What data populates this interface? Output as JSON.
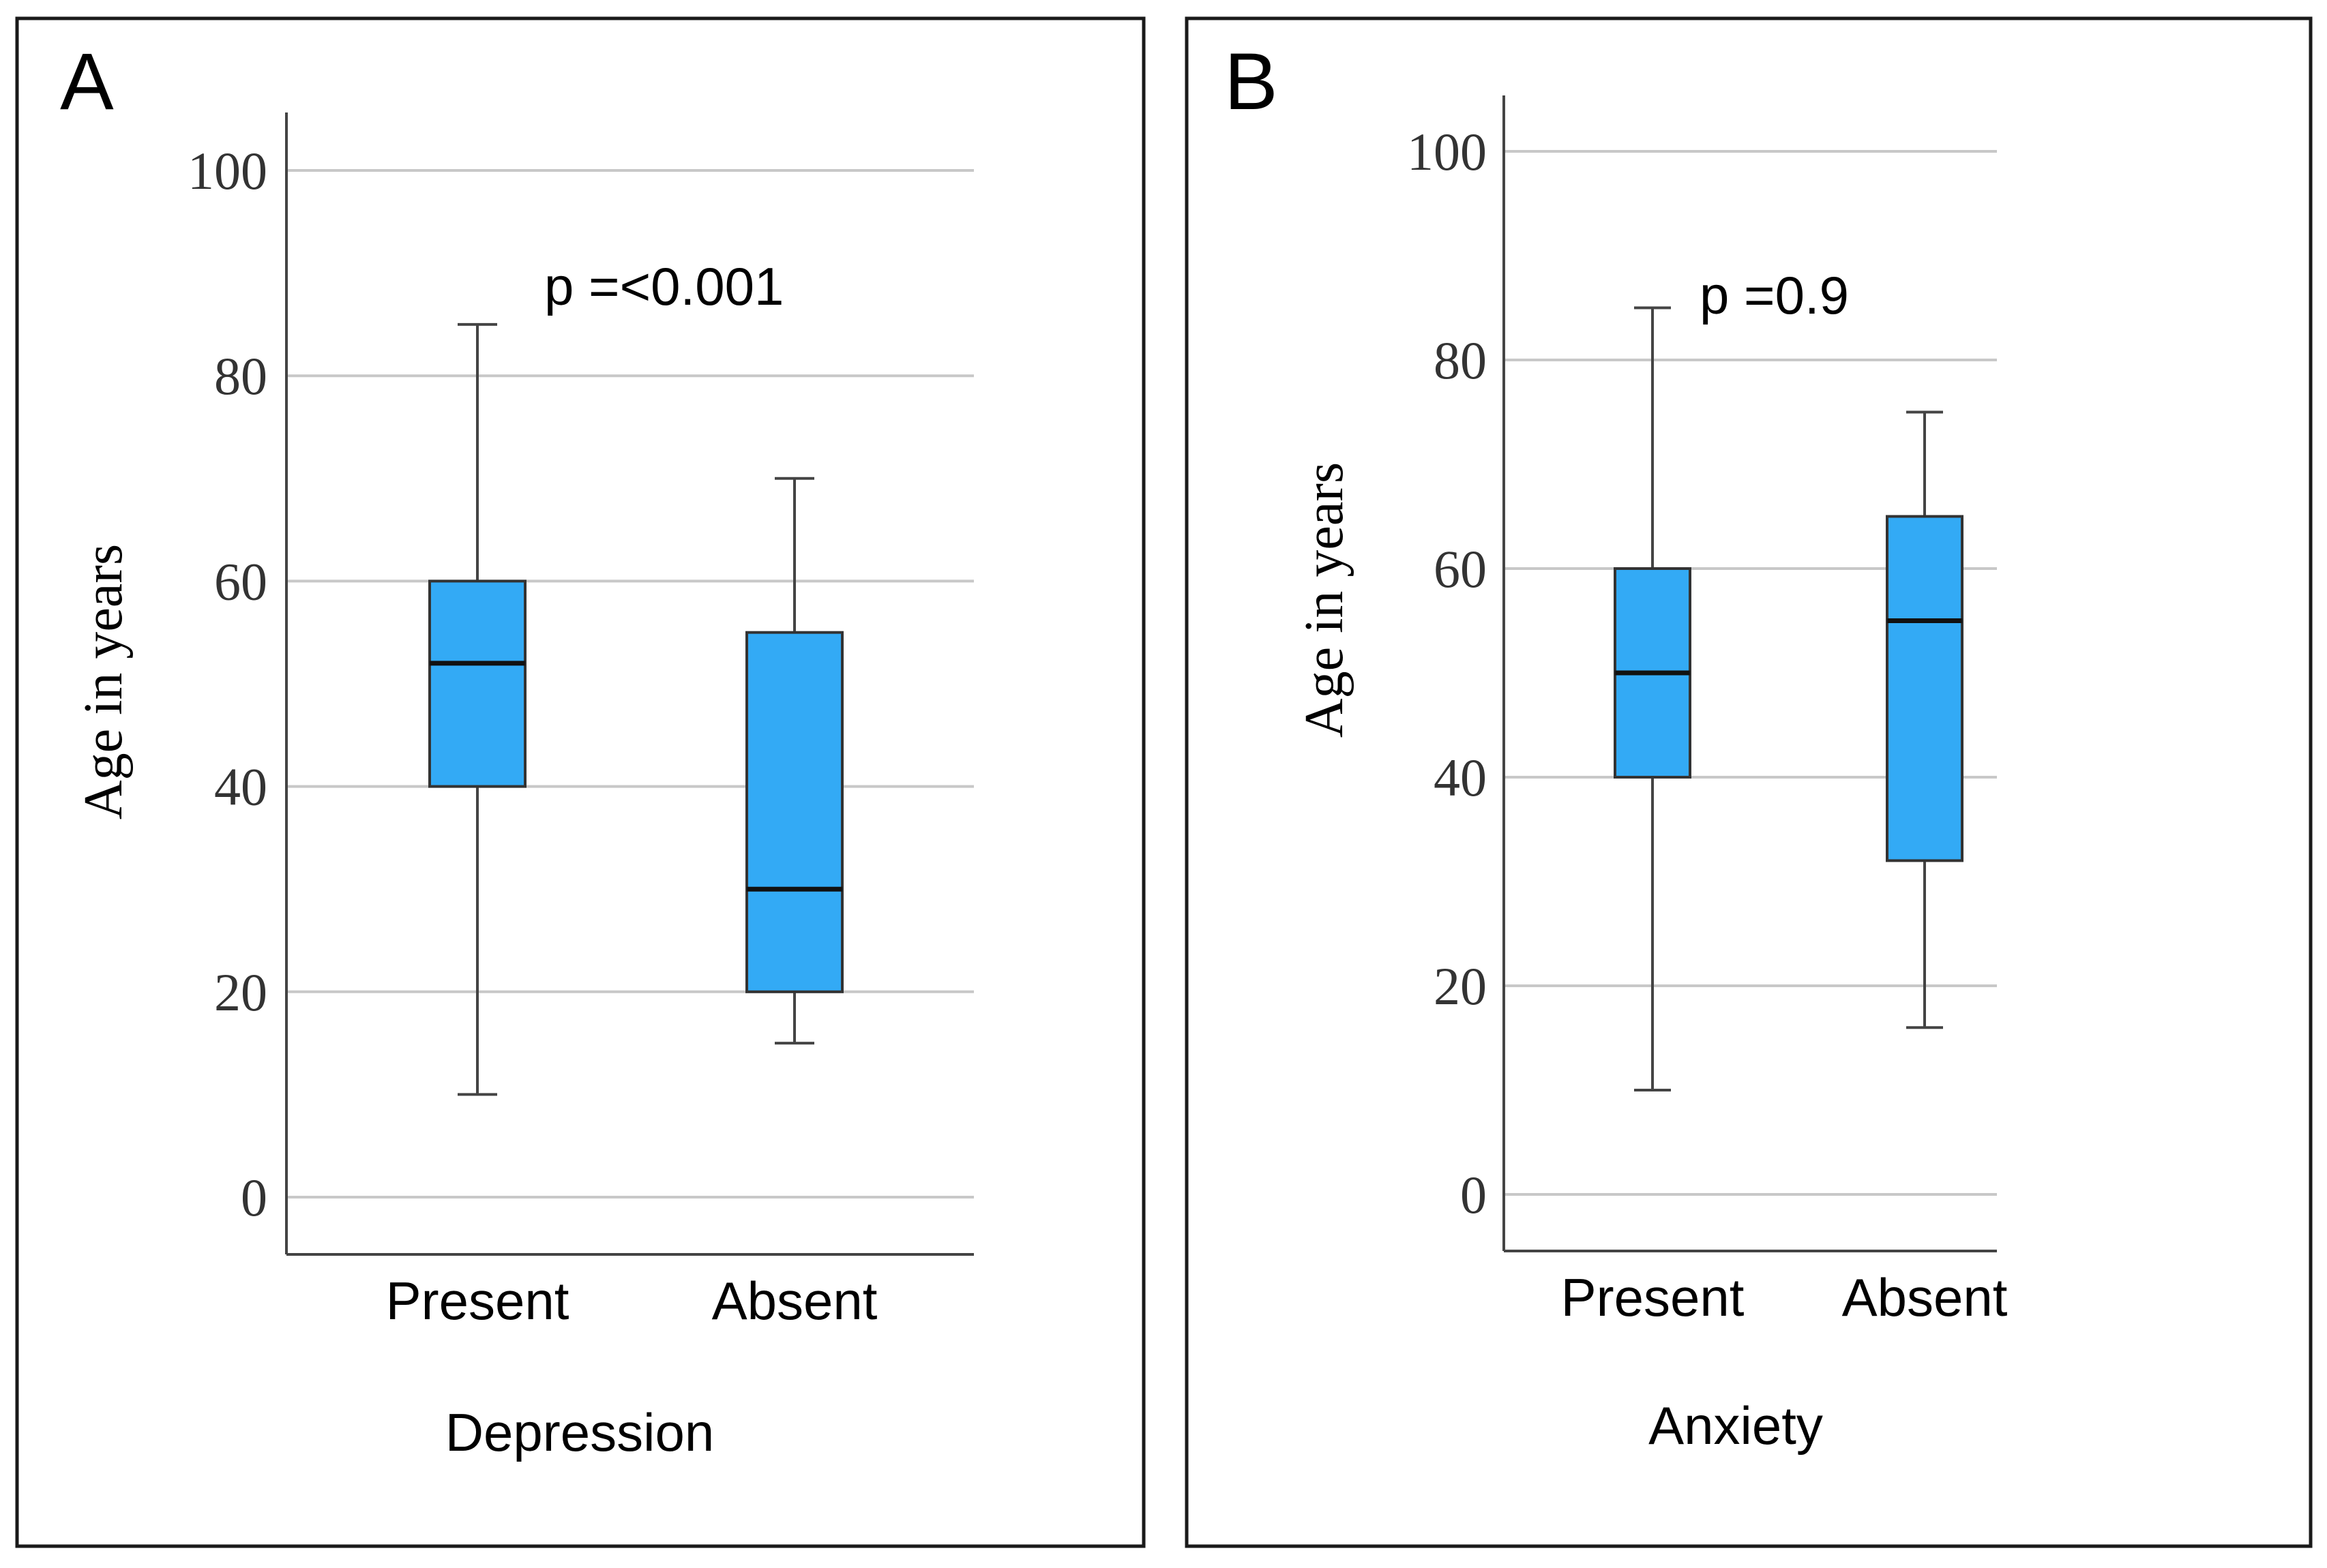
{
  "figure": {
    "background": "#ffffff",
    "box_color": "#33aaf5"
  },
  "chart_data": [
    {
      "type": "box",
      "panel_label": "A",
      "title": "",
      "xlabel": "Depression",
      "ylabel": "Age in years",
      "ylim": [
        0,
        100
      ],
      "yticks": [
        0,
        20,
        40,
        60,
        80,
        100
      ],
      "grid": true,
      "annotation": "p =<0.001",
      "categories": [
        "Present",
        "Absent"
      ],
      "boxes": [
        {
          "name": "Present",
          "min": 10,
          "q1": 40,
          "median": 52,
          "q3": 60,
          "max": 85
        },
        {
          "name": "Absent",
          "min": 15,
          "q1": 20,
          "median": 30,
          "q3": 55,
          "max": 70
        }
      ]
    },
    {
      "type": "box",
      "panel_label": "B",
      "title": "",
      "xlabel": "Anxiety",
      "ylabel": "Age in years",
      "ylim": [
        0,
        100
      ],
      "yticks": [
        0,
        20,
        40,
        60,
        80,
        100
      ],
      "grid": true,
      "annotation": "p =0.9",
      "categories": [
        "Present",
        "Absent"
      ],
      "boxes": [
        {
          "name": "Present",
          "min": 10,
          "q1": 40,
          "median": 50,
          "q3": 60,
          "max": 85
        },
        {
          "name": "Absent",
          "min": 16,
          "q1": 32,
          "median": 55,
          "q3": 65,
          "max": 75
        }
      ]
    }
  ]
}
